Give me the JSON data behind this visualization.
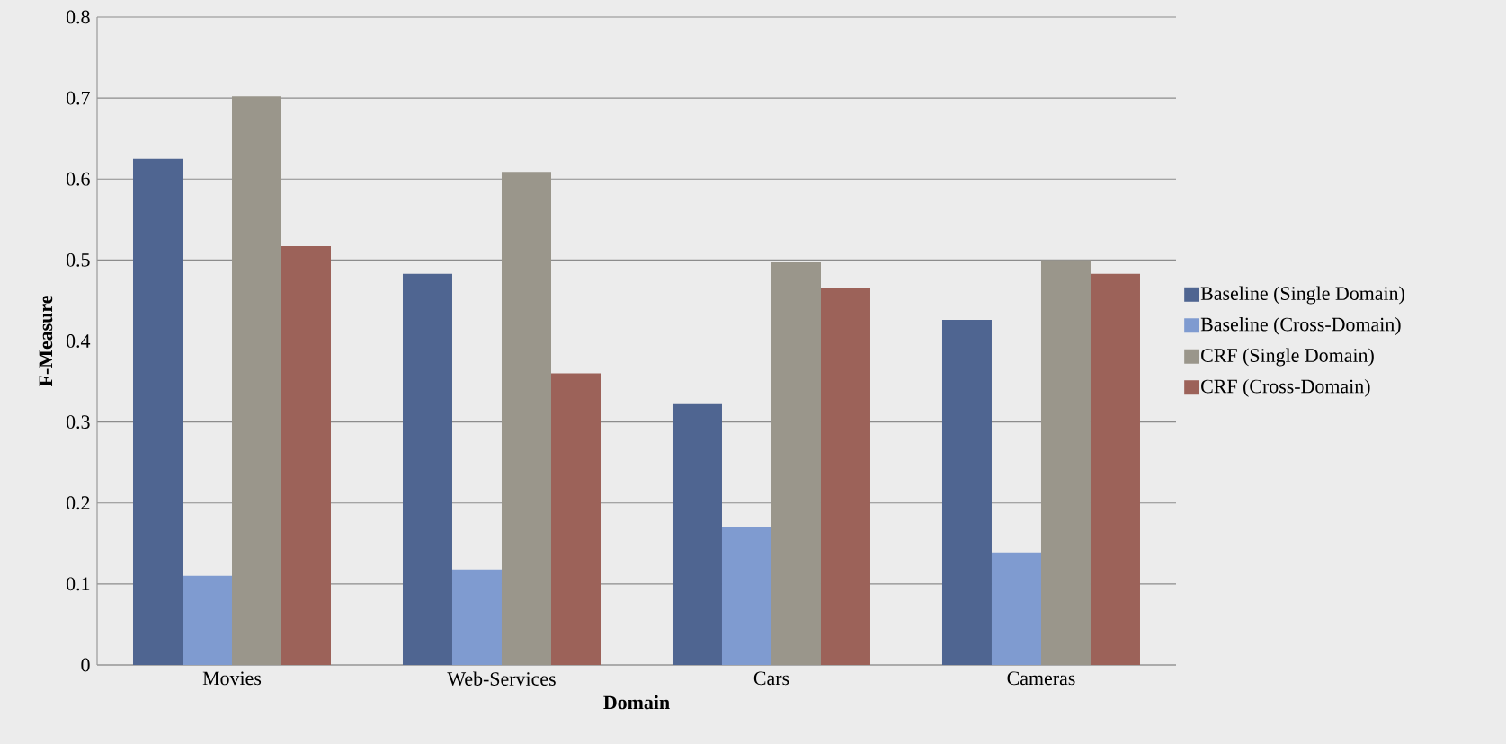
{
  "chart_data": {
    "type": "bar",
    "xlabel": "Domain",
    "ylabel": "F-Measure",
    "categories": [
      "Movies",
      "Web-Services",
      "Cars",
      "Cameras"
    ],
    "series": [
      {
        "name": "Baseline (Single Domain)",
        "color": "#4f6591",
        "values": [
          0.625,
          0.483,
          0.322,
          0.426
        ]
      },
      {
        "name": "Baseline (Cross-Domain)",
        "color": "#7f9bd0",
        "values": [
          0.11,
          0.118,
          0.171,
          0.139
        ]
      },
      {
        "name": "CRF (Single Domain)",
        "color": "#9a968b",
        "values": [
          0.702,
          0.609,
          0.497,
          0.5
        ]
      },
      {
        "name": "CRF (Cross-Domain)",
        "color": "#9c6259",
        "values": [
          0.517,
          0.36,
          0.466,
          0.483
        ]
      }
    ],
    "ylim": [
      0,
      0.8
    ],
    "yticks": [
      0,
      0.1,
      0.2,
      0.3,
      0.4,
      0.5,
      0.6,
      0.7,
      0.8
    ],
    "grid": "y",
    "legend": "right"
  }
}
